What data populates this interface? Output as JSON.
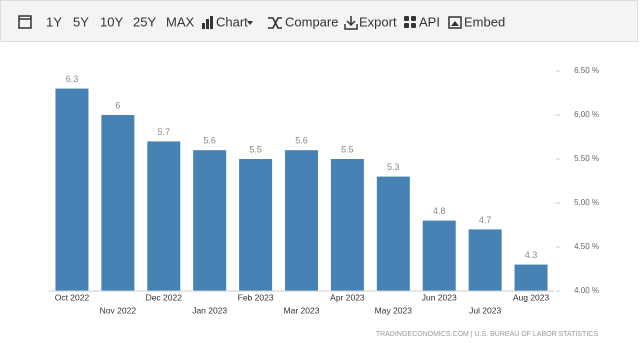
{
  "toolbar": {
    "items": [
      "1Y",
      "5Y",
      "10Y",
      "25Y",
      "MAX",
      "Chart",
      "Compare",
      "Export",
      "API",
      "Embed"
    ]
  },
  "chart_data": {
    "type": "bar",
    "categories": [
      "Oct 2022",
      "Nov 2022",
      "Dec 2022",
      "Jan 2023",
      "Feb 2023",
      "Mar 2023",
      "Apr 2023",
      "May 2023",
      "Jun 2023",
      "Jul 2023",
      "Aug 2023"
    ],
    "values": [
      6.3,
      6,
      5.7,
      5.6,
      5.5,
      5.6,
      5.5,
      5.3,
      4.8,
      4.7,
      4.3
    ],
    "color": "#4682b4",
    "ylim": [
      4.0,
      6.5
    ],
    "yticks": [
      {
        "value": 4.0,
        "label": "4.00 %"
      },
      {
        "value": 4.5,
        "label": "4.50 %"
      },
      {
        "value": 5.0,
        "label": "5.00 %"
      },
      {
        "value": 5.5,
        "label": "5.50 %"
      },
      {
        "value": 6.0,
        "label": "6.00 %"
      },
      {
        "value": 6.5,
        "label": "6.50 %"
      }
    ],
    "grid": false,
    "source": "TRADINGECONOMICS.COM | U.S. BUREAU OF LABOR STATISTICS"
  }
}
